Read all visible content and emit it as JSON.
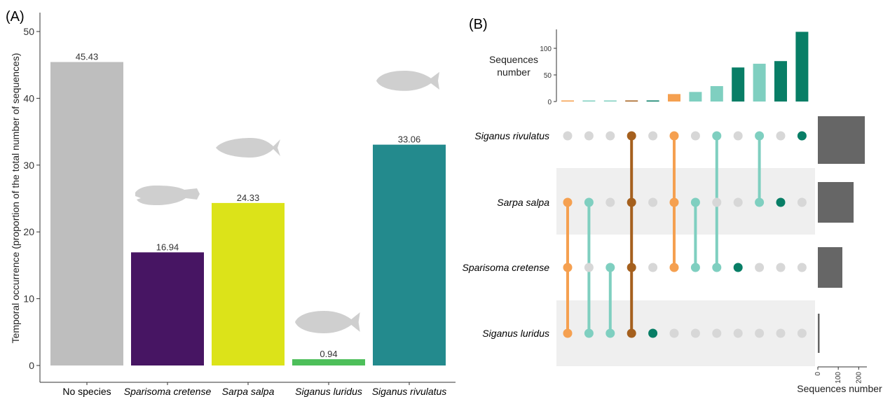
{
  "chart_data": [
    {
      "panel": "(A)",
      "type": "bar",
      "ylabel": "Temporal occurrence (proportion of the total number of sequences)",
      "ylim": [
        0,
        52
      ],
      "yticks": [
        0,
        10,
        20,
        30,
        40,
        50
      ],
      "categories": [
        {
          "label": "No species",
          "italic": false
        },
        {
          "label": "Sparisoma cretense",
          "italic": true
        },
        {
          "label": "Sarpa salpa",
          "italic": true
        },
        {
          "label": "Siganus luridus",
          "italic": true
        },
        {
          "label": "Siganus rivulatus",
          "italic": true
        }
      ],
      "values": [
        45.43,
        16.94,
        24.33,
        0.94,
        33.06
      ],
      "value_labels": [
        "45.43",
        "16.94",
        "24.33",
        "0.94",
        "33.06"
      ],
      "colors": [
        "#bebebe",
        "#471563",
        "#dce319",
        "#4dbf5a",
        "#238a8d"
      ],
      "silhouettes": [
        "none",
        "parrotfish",
        "bream",
        "rabbitfish",
        "rabbitfish"
      ]
    },
    {
      "panel": "(B)",
      "type": "upset",
      "sets": [
        "Siganus rivulatus",
        "Sarpa salpa",
        "Sparisoma cretense",
        "Siganus luridus"
      ],
      "set_sizes": [
        230,
        175,
        120,
        5
      ],
      "set_size_axis": {
        "label": "Sequences number",
        "ticks": [
          "0",
          "100",
          "200"
        ],
        "max": 250
      },
      "intersection_axis": {
        "label_line1": "Sequences",
        "label_line2": "number",
        "ticks": [
          "0",
          "50",
          "100"
        ],
        "max": 140
      },
      "intersections": [
        {
          "members": [
            "Sarpa salpa",
            "Sparisoma cretense",
            "Siganus luridus"
          ],
          "size": 2,
          "color": "#f5a050"
        },
        {
          "members": [
            "Sarpa salpa",
            "Siganus luridus"
          ],
          "size": 2,
          "color": "#7fcfc0"
        },
        {
          "members": [
            "Sparisoma cretense",
            "Siganus luridus"
          ],
          "size": 2,
          "color": "#7fcfc0"
        },
        {
          "members": [
            "Siganus rivulatus",
            "Sarpa salpa",
            "Sparisoma cretense",
            "Siganus luridus"
          ],
          "size": 2,
          "color": "#a5601e"
        },
        {
          "members": [
            "Siganus luridus"
          ],
          "size": 2,
          "color": "#087e66"
        },
        {
          "members": [
            "Siganus rivulatus",
            "Sarpa salpa",
            "Sparisoma cretense"
          ],
          "size": 14,
          "color": "#f5a050"
        },
        {
          "members": [
            "Sarpa salpa",
            "Sparisoma cretense"
          ],
          "size": 18,
          "color": "#7fcfc0"
        },
        {
          "members": [
            "Siganus rivulatus",
            "Sparisoma cretense"
          ],
          "size": 29,
          "color": "#7fcfc0"
        },
        {
          "members": [
            "Sparisoma cretense"
          ],
          "size": 64,
          "color": "#087e66"
        },
        {
          "members": [
            "Siganus rivulatus",
            "Sarpa salpa"
          ],
          "size": 71,
          "color": "#7fcfc0"
        },
        {
          "members": [
            "Sarpa salpa"
          ],
          "size": 76,
          "color": "#087e66"
        },
        {
          "members": [
            "Siganus rivulatus"
          ],
          "size": 131,
          "color": "#087e66"
        }
      ]
    }
  ]
}
